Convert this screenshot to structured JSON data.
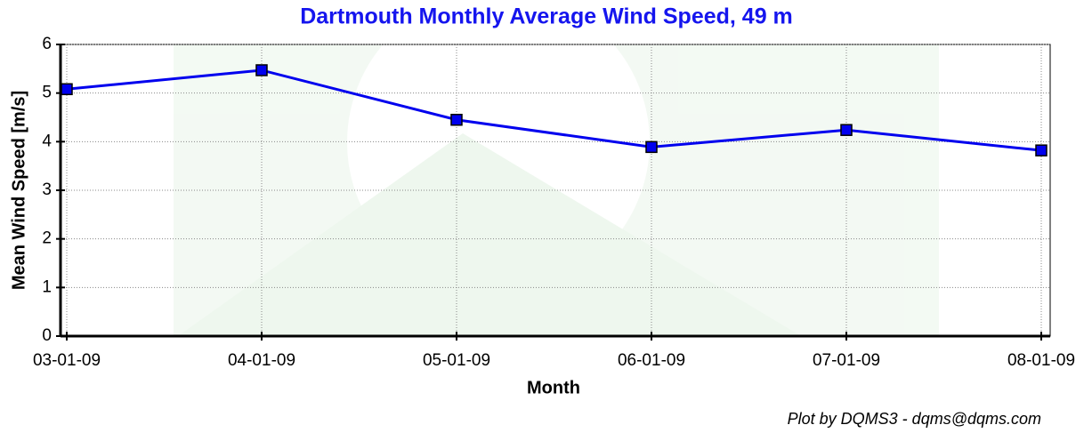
{
  "chart_data": {
    "type": "line",
    "title": "Dartmouth Monthly Average Wind Speed, 49 m",
    "x_label": "Month",
    "y_label": "Mean Wind Speed [m/s]",
    "footer": "Plot by DQMS3 - dqms@dqms.com",
    "categories": [
      "03-01-09",
      "04-01-09",
      "05-01-09",
      "06-01-09",
      "07-01-09",
      "08-01-09"
    ],
    "series": [
      {
        "name": "Mean Wind Speed",
        "color": "#0000ee",
        "values": [
          5.08,
          5.47,
          4.45,
          3.89,
          4.24,
          3.82
        ]
      }
    ],
    "ylim": [
      0,
      6
    ],
    "yticks": [
      0,
      1,
      2,
      3,
      4,
      5,
      6
    ],
    "grid": true
  }
}
